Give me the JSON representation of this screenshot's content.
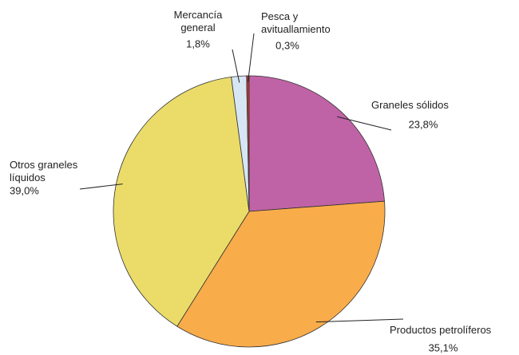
{
  "chart_data": {
    "type": "pie",
    "categories": [
      "Graneles sólidos",
      "Productos petrolíferos",
      "Otros graneles\nlíquidos",
      "Mercancía\ngeneral",
      "Pesca y\navituallamiento"
    ],
    "values": [
      23.8,
      35.1,
      39.0,
      1.8,
      0.3
    ],
    "value_labels": [
      "23,8%",
      "35,1%",
      "39,0%",
      "1,8%",
      "0,3%"
    ],
    "colors": [
      "#c063a6",
      "#f9ac4a",
      "#ebdc6a",
      "#d6e6f4",
      "#c0392b"
    ]
  }
}
